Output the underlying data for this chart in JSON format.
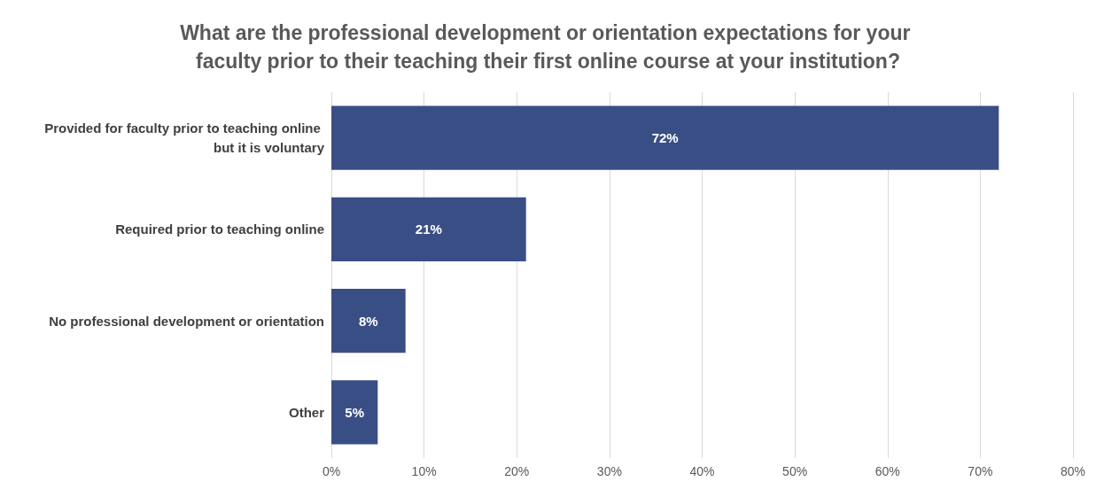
{
  "chart_data": {
    "type": "bar",
    "orientation": "horizontal",
    "title": "What are the professional development or orientation expectations for your faculty prior to their teaching their first online course at your institution?",
    "categories": [
      "Provided for faculty prior to teaching online but it is voluntary",
      "Required prior to teaching online",
      "No professional development or orientation",
      "Other"
    ],
    "values": [
      72,
      21,
      8,
      5
    ],
    "value_labels": [
      "72%",
      "21%",
      "8%",
      "5%"
    ],
    "color": "#3a4e86",
    "xlim": [
      0,
      80
    ],
    "xticks": [
      {
        "value": 0,
        "label": "0%"
      },
      {
        "value": 10,
        "label": "10%"
      },
      {
        "value": 20,
        "label": "20%"
      },
      {
        "value": 30,
        "label": "30%"
      },
      {
        "value": 40,
        "label": "40%"
      },
      {
        "value": 50,
        "label": "50%"
      },
      {
        "value": 60,
        "label": "60%"
      },
      {
        "value": 70,
        "label": "70%"
      },
      {
        "value": 80,
        "label": "80%"
      }
    ],
    "grid": "x"
  }
}
